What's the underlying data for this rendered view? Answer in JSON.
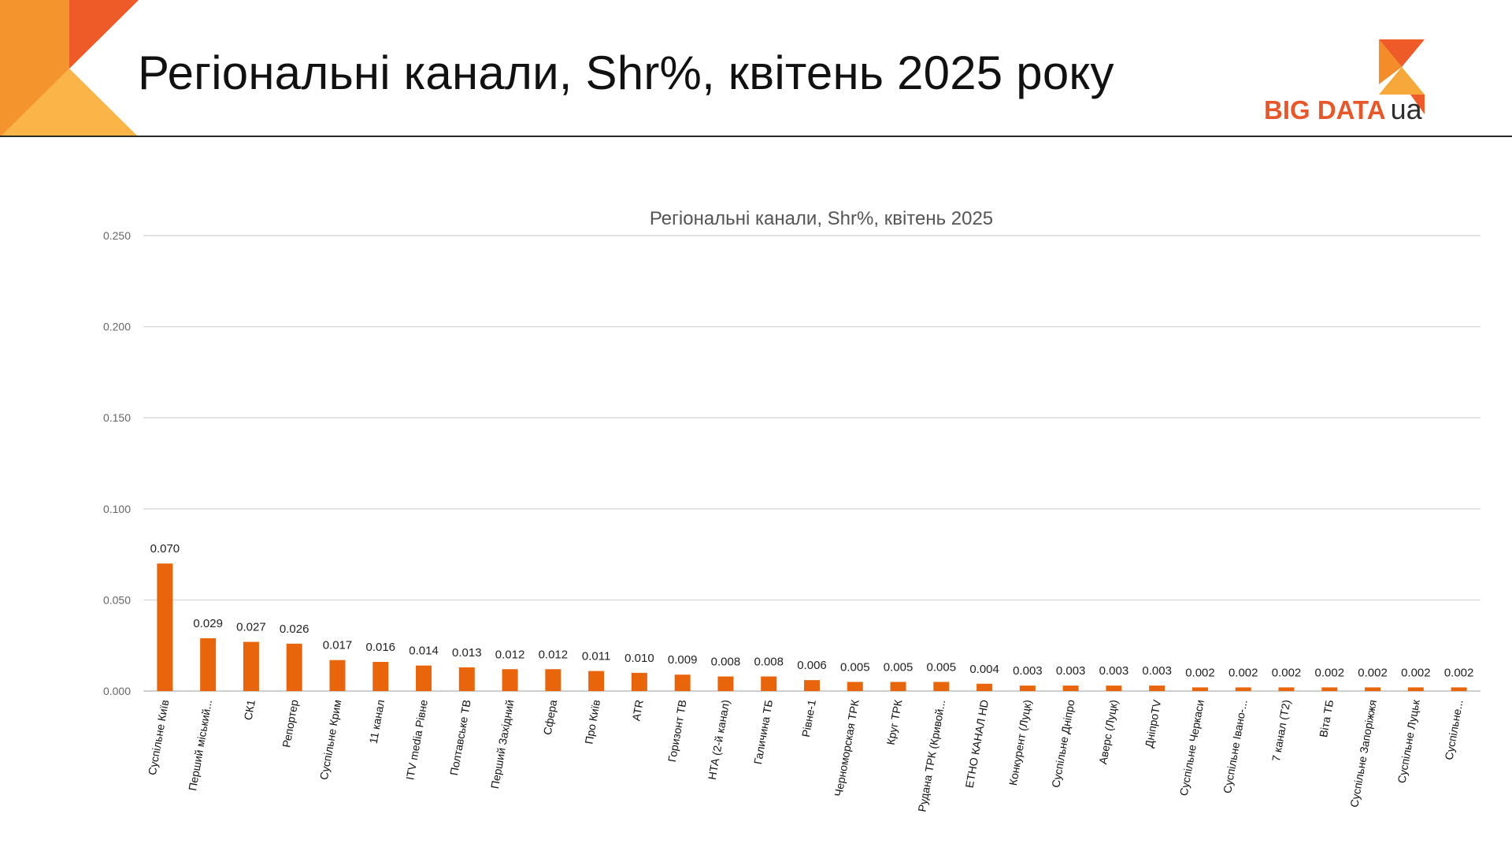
{
  "header": {
    "title": "Регіональні канали, Shr%, квітень 2025 року",
    "logo_text": "BIG DATA",
    "logo_suffix": "ua",
    "accent": "#f26d21"
  },
  "chart_data": {
    "type": "bar",
    "title": "Регіональні канали, Shr%, квітень 2025",
    "xlabel": "",
    "ylabel": "",
    "ylim": [
      0,
      0.25
    ],
    "yticks": [
      "0.000",
      "0.050",
      "0.100",
      "0.150",
      "0.200",
      "0.250"
    ],
    "grid": true,
    "bar_color": "#e8650c",
    "categories": [
      "Суспільне Київ",
      "Перший міський...",
      "СК1",
      "Репортер",
      "Суспільне Крим",
      "11 канал",
      "ITV media Рівне",
      "Полтавське ТВ",
      "Перший Західний",
      "Сфера",
      "Про Київ",
      "ATR",
      "Горизонт ТВ",
      "НТА (2-й канал)",
      "Галичина ТБ",
      "Рівне-1",
      "Черноморская ТРК",
      "Круг ТРК",
      "Рудана ТРК (Кривой...",
      "ЕТНО КАНАЛ HD",
      "Конкурент (Луцк)",
      "Суспільне Дніпро",
      "Аверс (Луцк)",
      "ДніпроTV",
      "Суспільне Черкаси",
      "Суспільне Івано-...",
      "7 канал (Т2)",
      "Віта ТБ",
      "Суспільне Запоріжжя",
      "Суспільне Луцьк",
      "Суспільне..."
    ],
    "values": [
      0.07,
      0.029,
      0.027,
      0.026,
      0.017,
      0.016,
      0.014,
      0.013,
      0.012,
      0.012,
      0.011,
      0.01,
      0.009,
      0.008,
      0.008,
      0.006,
      0.005,
      0.005,
      0.005,
      0.004,
      0.003,
      0.003,
      0.003,
      0.003,
      0.002,
      0.002,
      0.002,
      0.002,
      0.002,
      0.002,
      0.002
    ],
    "data_labels": [
      "0.070",
      "0.029",
      "0.027",
      "0.026",
      "0.017",
      "0.016",
      "0.014",
      "0.013",
      "0.012",
      "0.012",
      "0.011",
      "0.010",
      "0.009",
      "0.008",
      "0.008",
      "0.006",
      "0.005",
      "0.005",
      "0.005",
      "0.004",
      "0.003",
      "0.003",
      "0.003",
      "0.003",
      "0.002",
      "0.002",
      "0.002",
      "0.002",
      "0.002",
      "0.002",
      "0.002"
    ]
  }
}
